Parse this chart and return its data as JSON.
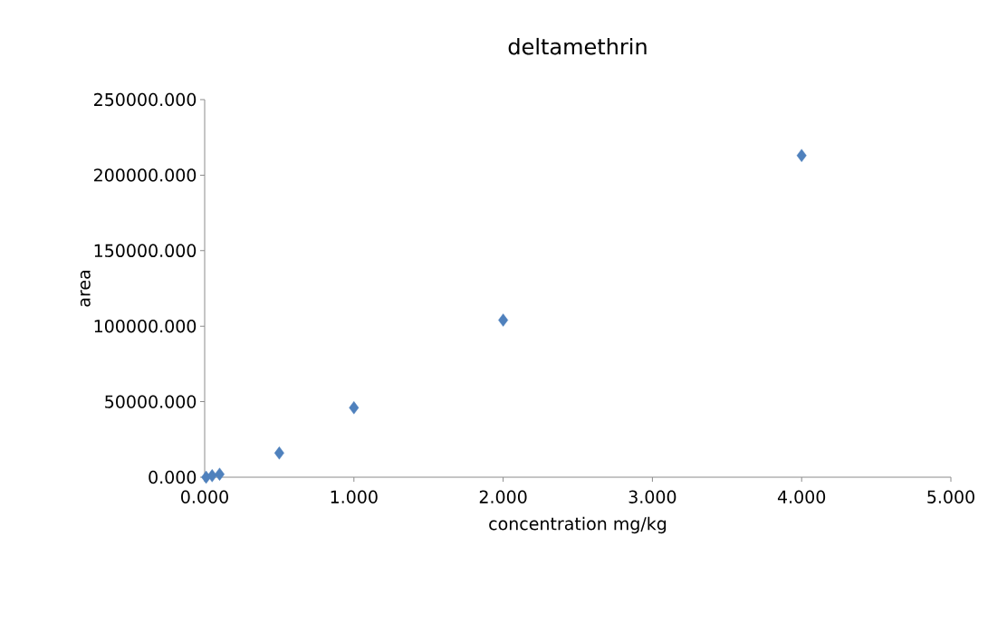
{
  "chart_data": {
    "type": "scatter",
    "title": "deltamethrin",
    "xlabel": "concentration mg/kg",
    "ylabel": "area",
    "x": [
      0.01,
      0.05,
      0.1,
      0.5,
      1,
      2,
      4
    ],
    "series": [
      {
        "color": "#4f81bd",
        "values": [
          0,
          1000,
          2000,
          16000,
          46000,
          104000,
          213000
        ]
      }
    ],
    "marker": "diamond",
    "xlim": [
      0,
      5
    ],
    "ylim": [
      0,
      250000
    ],
    "xticks": [
      {
        "value": 0,
        "label": "0.000"
      },
      {
        "value": 1,
        "label": "1.000"
      },
      {
        "value": 2,
        "label": "2.000"
      },
      {
        "value": 3,
        "label": "3.000"
      },
      {
        "value": 4,
        "label": "4.000"
      },
      {
        "value": 5,
        "label": "5.000"
      }
    ],
    "yticks": [
      {
        "value": 0,
        "label": "0.000"
      },
      {
        "value": 50000,
        "label": "50000.000"
      },
      {
        "value": 100000,
        "label": "100000.000"
      },
      {
        "value": 150000,
        "label": "150000.000"
      },
      {
        "value": 200000,
        "label": "200000.000"
      },
      {
        "value": 250000,
        "label": "250000.000"
      }
    ]
  }
}
